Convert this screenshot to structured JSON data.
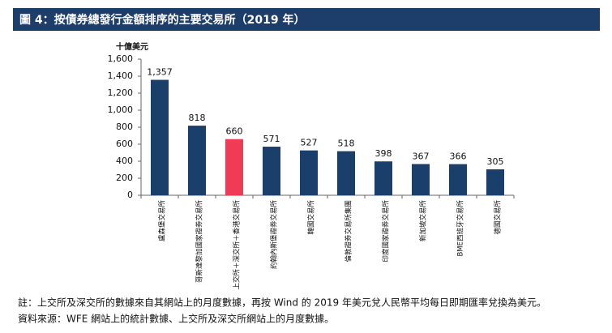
{
  "chart_data": {
    "type": "bar",
    "title": "圖 4：按債券總發行金額排序的主要交易所（2019 年）",
    "y_label": "十億美元",
    "categories": [
      "盧森堡交易所",
      "哥斯達黎加國家證券交易所",
      "上交所＋深交所＋香港交易所",
      "約翰內斯堡證券交易所",
      "韓國交易所",
      "倫敦證券交易所集團",
      "印度國家證券交易所",
      "新加坡交易所",
      "BME西班牙交易所",
      "德國交易所"
    ],
    "values": [
      1357,
      818,
      660,
      571,
      527,
      518,
      398,
      367,
      366,
      305
    ],
    "value_labels": [
      "1,357",
      "818",
      "660",
      "571",
      "527",
      "518",
      "398",
      "367",
      "366",
      "305"
    ],
    "colors": [
      "#1b3f6b",
      "#1b3f6b",
      "#ef3b55",
      "#1b3f6b",
      "#1b3f6b",
      "#1b3f6b",
      "#1b3f6b",
      "#1b3f6b",
      "#1b3f6b",
      "#1b3f6b"
    ],
    "ylim": [
      0,
      1600
    ],
    "yticks": [
      0,
      200,
      400,
      600,
      800,
      {
        "value": 1000,
        "label": "1,000"
      },
      {
        "value": 1200,
        "label": "1,200"
      },
      {
        "value": 1400,
        "label": "1,400"
      },
      {
        "value": 1600,
        "label": "1,600"
      }
    ],
    "grid": false,
    "notes": [
      "註：上交所及深交所的數據來自其網站上的月度數據，再按 Wind 的 2019 年美元兌人民幣平均每日即期匯率兌換為美元。",
      "資料來源：WFE 網站上的統計數據、上交所及深交所網站上的月度數據。"
    ]
  }
}
